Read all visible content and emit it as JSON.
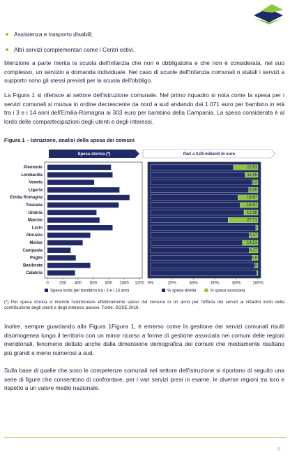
{
  "bullets": [
    "Assistenza e trasporto disabili;",
    "Altri servizi complementari come i Centri estivi."
  ],
  "paragraphs_before": [
    "Menzione a parte merita la scuola dell'infanzia che non è obbligatoria e che non è considerata, nel suo complesso, un servizio a domanda individuale. Nel caso di scuole dell'infanzia comunali o statali i servizi a supporto sono gli stessi previsti per la scuola dell'obbligo.",
    "La Figura 1 si riferisce al settore dell'istruzione comunale. Nel primo riquadro si nota come la spesa per i servizi comunali si muova in ordine decrescente da nord a sud andando dai 1.071 euro per bambino in età tra i 3 e i 14 anni dell'Emilia-Romagna ai 303 euro per bambino della Campania. La spesa considerata è al lordo delle compartecipazioni degli utenti e degli interessi."
  ],
  "figure": {
    "caption": "Figura 1 – Istruzione, analisi della spesa dei comuni",
    "footnote": "(*) Per spesa storica si intende l'ammontare effettivamente speso dal comune in un anno per l'offerta dei servizi ai cittadini lordo della contribuzione degli utenti e degli interessi passivi.  Fonte: SOSE 2016."
  },
  "chart_data": [
    {
      "type": "bar",
      "header": "Spesa storica (*)",
      "categories": [
        "Piemonte",
        "Lombardia",
        "Veneto",
        "Liguria",
        "Emilia Romagna",
        "Toscana",
        "Umbria",
        "Marche",
        "Lazio",
        "Abruzzo",
        "Molise",
        "Campania",
        "Puglia",
        "Basilicata",
        "Calabria"
      ],
      "series": [
        {
          "name": "Spesa lorda per bambino tra i 3 e i 14 anni",
          "color": "#1f2a66",
          "values": [
            830,
            850,
            610,
            940,
            1071,
            930,
            640,
            680,
            850,
            560,
            460,
            303,
            370,
            560,
            360
          ]
        }
      ],
      "xlim": [
        0,
        1200
      ],
      "xticks": [
        0,
        200,
        400,
        600,
        800,
        1000,
        1200
      ]
    },
    {
      "type": "stacked_bar",
      "header": "Pari a 4,05 miliardi di euro",
      "series": [
        {
          "name": "% spesa diretta",
          "color": "#1f2a66",
          "values": [
            77.19,
            88.05,
            94.7,
            91.45,
            81.33,
            83.43,
            87.02,
            72.29,
            98,
            91.73,
            85.49,
            91.83,
            94.4,
            97.1,
            99
          ]
        },
        {
          "name": "% spesa associata",
          "color": "#8dc63f",
          "values": [
            22.81,
            11.95,
            5.3,
            8.55,
            18.67,
            16.57,
            12.98,
            27.71,
            2,
            8.27,
            14.51,
            8.17,
            5.6,
            2.9,
            1
          ],
          "value_labels": [
            "22,81",
            "11,95",
            "5,3",
            "8,55",
            "18,67",
            "16,57",
            "12,98",
            "27,71",
            "2",
            "8,27",
            "14,51",
            "8,17",
            "5,6",
            "2,9",
            "1"
          ]
        }
      ],
      "xlim": [
        0,
        100
      ],
      "xticks": [
        {
          "value": 0,
          "label": "0%"
        },
        {
          "value": 20,
          "label": "20%"
        },
        {
          "value": 40,
          "label": "40%"
        },
        {
          "value": 60,
          "label": "60%"
        },
        {
          "value": 80,
          "label": "80%"
        },
        {
          "value": 100,
          "label": "100%"
        }
      ]
    }
  ],
  "paragraphs_after": [
    "Inoltre, sempre guardando alla Figura 1Figura 1, è emerso come la gestione dei servizi comunali risulti disomogenea lungo il territorio con un minor ricorso a forme di gestione associata nei comuni delle regioni meridionali, fenomeno dettato anche dalla dimensione demografica dei comuni che mediamente risultano più grandi e meno numerosi a sud.",
    "Sulla base di quelle che sono le competenze comunali nel settore dell'istruzione si riportano di seguito una serie di figure che consentono di confrontare, per i vari servizi presi in esame, le diverse regioni tra loro e rispetto a un valore medio nazionale."
  ],
  "page_number": "8"
}
